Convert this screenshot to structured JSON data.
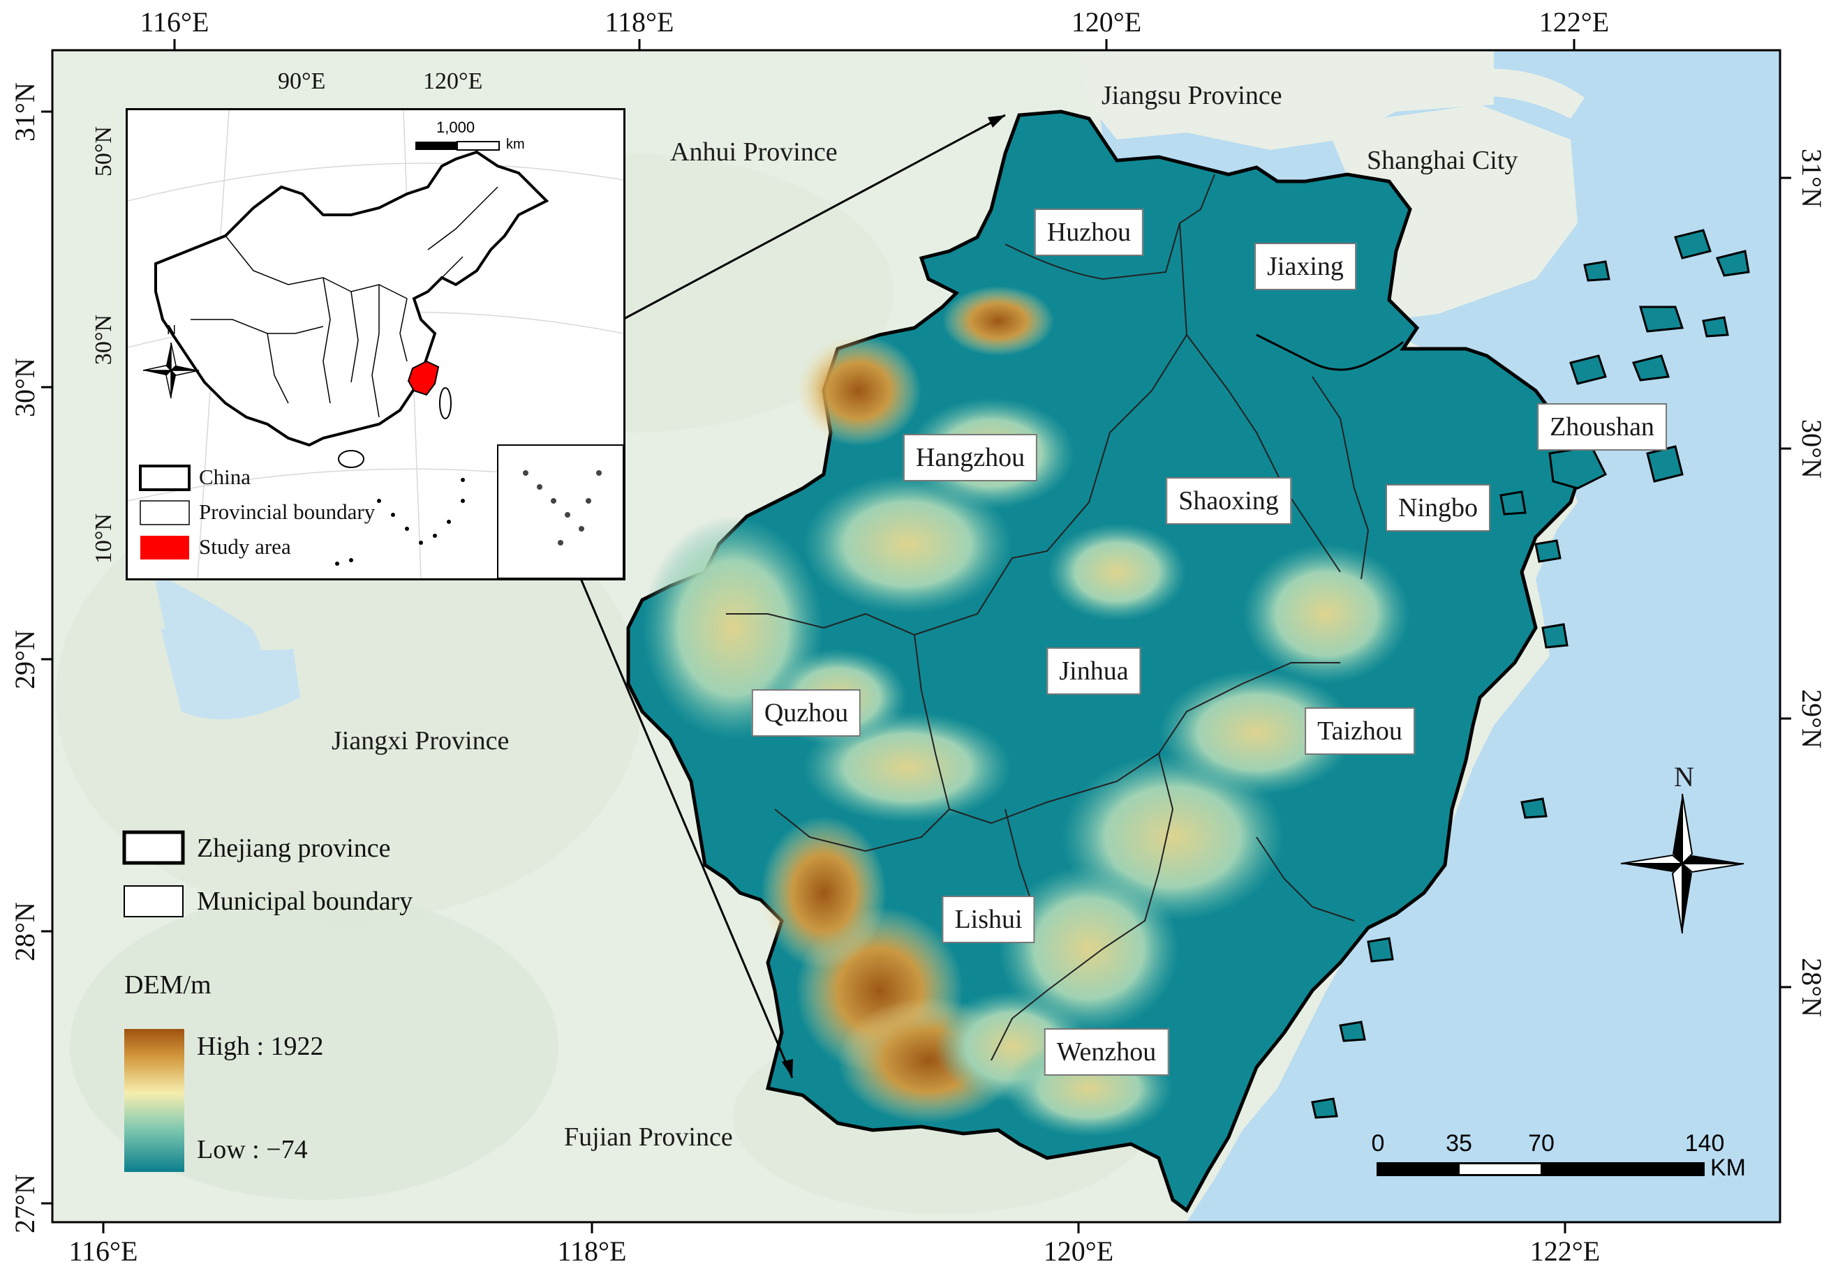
{
  "graticule": {
    "top": [
      "116°E",
      "118°E",
      "120°E",
      "122°E"
    ],
    "bottom": [
      "116°E",
      "118°E",
      "120°E",
      "122°E"
    ],
    "left": [
      "31°N",
      "30°N",
      "29°N",
      "28°N",
      "27°N"
    ],
    "right": [
      "31°N",
      "30°N",
      "29°N",
      "28°N"
    ]
  },
  "regions": {
    "jiangsu": "Jiangsu Province",
    "anhui": "Anhui Province",
    "shanghai": "Shanghai City",
    "jiangxi": "Jiangxi Province",
    "fujian": "Fujian Province"
  },
  "cities": {
    "huzhou": "Huzhou",
    "jiaxing": "Jiaxing",
    "hangzhou": "Hangzhou",
    "shaoxing": "Shaoxing",
    "ningbo": "Ningbo",
    "zhoushan": "Zhoushan",
    "jinhua": "Jinhua",
    "quzhou": "Quzhou",
    "taizhou": "Taizhou",
    "lishui": "Lishui",
    "wenzhou": "Wenzhou"
  },
  "inset": {
    "graticule_top": [
      "90°E",
      "120°E"
    ],
    "graticule_left": [
      "50°N",
      "30°N",
      "10°N"
    ],
    "scale_value": "1,000",
    "scale_unit": "km",
    "north_label": "N",
    "legend": {
      "china": "China",
      "provincial": "Provincial boundary",
      "study": "Study area"
    },
    "colors": {
      "study_area": "#ff0000"
    }
  },
  "legend": {
    "zhejiang": "Zhejiang province",
    "municipal": "Municipal boundary",
    "dem_title": "DEM/m",
    "dem_high": "High : 1922",
    "dem_low": "Low : −74",
    "dem_colors": [
      "#a0520f",
      "#d49a3f",
      "#f6eeaf",
      "#7fc8b0",
      "#1a9396",
      "#0b7f8c"
    ]
  },
  "scalebar": {
    "labels": [
      "0",
      "35",
      "70",
      "140"
    ],
    "unit": "KM"
  },
  "north_arrow": {
    "label": "N"
  },
  "colors": {
    "sea": "#b9dcf1",
    "land_background": "#e7eee3",
    "zhejiang_low": "#0f8893"
  }
}
